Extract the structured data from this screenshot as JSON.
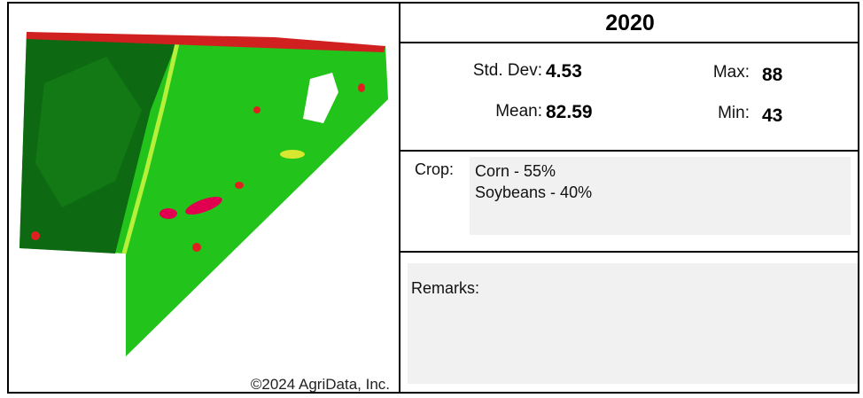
{
  "header": {
    "title": "2020"
  },
  "stats": {
    "std_dev": {
      "label": "Std. Dev:",
      "value": 4.53
    },
    "mean": {
      "label": "Mean:",
      "value": 82.59
    },
    "max": {
      "label": "Max:",
      "value": 88
    },
    "min": {
      "label": "Min:",
      "value": 43
    }
  },
  "crop": {
    "label": "Crop:",
    "items": [
      "Corn - 55%",
      "Soybeans - 40%"
    ]
  },
  "remarks": {
    "label": "Remarks:"
  },
  "map": {
    "copyright": "©2024 AgriData, Inc."
  }
}
